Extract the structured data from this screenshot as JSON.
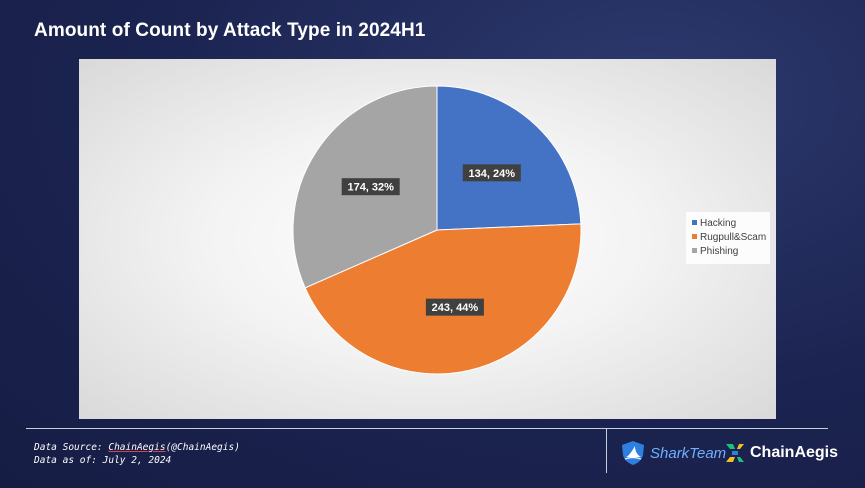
{
  "title": "Amount of Count by Attack Type in 2024H1",
  "chart_data": {
    "type": "pie",
    "title": "Amount of Count by Attack Type in 2024H1",
    "categories": [
      "Hacking",
      "Rugpull&Scam",
      "Phishing"
    ],
    "values": [
      134,
      243,
      174
    ],
    "percentages": [
      "24%",
      "44%",
      "32%"
    ],
    "data_labels": [
      "134, 24%",
      "243, 44%",
      "174, 32%"
    ],
    "colors": [
      "#4472C4",
      "#ED7D31",
      "#A5A5A5"
    ],
    "legend_position": "right"
  },
  "footer": {
    "source_prefix": "Data Source: ",
    "source_link": "ChainAegis",
    "source_suffix": "(@ChainAegis)",
    "data_as_of": "Data as of: July 2, 2024"
  },
  "brands": {
    "shark_team": "SharkTeam",
    "chain_aegis": "ChainAegis"
  }
}
